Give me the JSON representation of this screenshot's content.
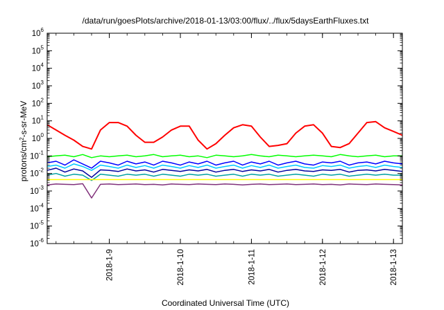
{
  "chart_data": {
    "type": "line",
    "title": "/data/run/goesPlots/archive/2018-01-13/03:00/flux/../flux/5daysEarthFluxes.txt",
    "xlabel": "Coordinated Universal Time (UTC)",
    "ylabel": "protons/cm2-s-sr-MeV",
    "yscale": "log",
    "ylim": [
      1e-06,
      1000000.0
    ],
    "xlim": [
      "2018-01-08 03:00",
      "2018-01-13 03:00"
    ],
    "grid": false,
    "y_ticks": [
      {
        "base": "10",
        "exp": "-6",
        "value": 1e-06
      },
      {
        "base": "10",
        "exp": "-5",
        "value": 1e-05
      },
      {
        "base": "10",
        "exp": "-4",
        "value": 0.0001
      },
      {
        "base": "10",
        "exp": "-3",
        "value": 0.001
      },
      {
        "base": "10",
        "exp": "-2",
        "value": 0.01
      },
      {
        "base": "10",
        "exp": "-1",
        "value": 0.1
      },
      {
        "base": "10",
        "exp": "0",
        "value": 1
      },
      {
        "base": "10",
        "exp": "1",
        "value": 10
      },
      {
        "base": "10",
        "exp": "2",
        "value": 100
      },
      {
        "base": "10",
        "exp": "3",
        "value": 1000
      },
      {
        "base": "10",
        "exp": "4",
        "value": 10000
      },
      {
        "base": "10",
        "exp": "5",
        "value": 100000
      },
      {
        "base": "10",
        "exp": "6",
        "value": 1000000
      }
    ],
    "x_ticks": [
      {
        "label": "2018-1-9",
        "value": "2018-01-09 00:00"
      },
      {
        "label": "2018-1-10",
        "value": "2018-01-10 00:00"
      },
      {
        "label": "2018-1-11",
        "value": "2018-01-11 00:00"
      },
      {
        "label": "2018-1-12",
        "value": "2018-01-12 00:00"
      },
      {
        "label": "2018-1-13",
        "value": "2018-01-13 00:00"
      }
    ],
    "x": [
      "2018-01-08 03:00",
      "2018-01-08 06:00",
      "2018-01-08 09:00",
      "2018-01-08 12:00",
      "2018-01-08 15:00",
      "2018-01-08 18:00",
      "2018-01-08 21:00",
      "2018-01-09 00:00",
      "2018-01-09 03:00",
      "2018-01-09 06:00",
      "2018-01-09 09:00",
      "2018-01-09 12:00",
      "2018-01-09 15:00",
      "2018-01-09 18:00",
      "2018-01-09 21:00",
      "2018-01-10 00:00",
      "2018-01-10 03:00",
      "2018-01-10 06:00",
      "2018-01-10 09:00",
      "2018-01-10 12:00",
      "2018-01-10 15:00",
      "2018-01-10 18:00",
      "2018-01-10 21:00",
      "2018-01-11 00:00",
      "2018-01-11 03:00",
      "2018-01-11 06:00",
      "2018-01-11 09:00",
      "2018-01-11 12:00",
      "2018-01-11 15:00",
      "2018-01-11 18:00",
      "2018-01-11 21:00",
      "2018-01-12 00:00",
      "2018-01-12 03:00",
      "2018-01-12 06:00",
      "2018-01-12 09:00",
      "2018-01-12 12:00",
      "2018-01-12 15:00",
      "2018-01-12 18:00",
      "2018-01-12 21:00",
      "2018-01-13 00:00",
      "2018-01-13 03:00"
    ],
    "series": [
      {
        "color": "#ff0000",
        "width": 2,
        "values": [
          6,
          3,
          1.5,
          0.8,
          0.35,
          0.25,
          3,
          8,
          8,
          5,
          1.5,
          0.6,
          0.6,
          1.2,
          3,
          5,
          5,
          0.8,
          0.25,
          0.5,
          1.5,
          4,
          6,
          5,
          1.2,
          0.35,
          0.4,
          0.5,
          2,
          5,
          6,
          2,
          0.35,
          0.3,
          0.5,
          2,
          8,
          9,
          4,
          2.5,
          1.5
        ]
      },
      {
        "color": "#00ff00",
        "width": 1.5,
        "values": [
          0.09,
          0.1,
          0.11,
          0.09,
          0.12,
          0.08,
          0.1,
          0.09,
          0.1,
          0.11,
          0.09,
          0.1,
          0.12,
          0.09,
          0.1,
          0.11,
          0.09,
          0.1,
          0.08,
          0.11,
          0.1,
          0.09,
          0.1,
          0.12,
          0.1,
          0.09,
          0.11,
          0.1,
          0.09,
          0.1,
          0.11,
          0.1,
          0.09,
          0.12,
          0.1,
          0.09,
          0.1,
          0.11,
          0.09,
          0.1,
          0.1
        ]
      },
      {
        "color": "#0000ff",
        "width": 1.5,
        "values": [
          0.04,
          0.05,
          0.03,
          0.06,
          0.035,
          0.02,
          0.05,
          0.04,
          0.03,
          0.05,
          0.035,
          0.045,
          0.03,
          0.05,
          0.04,
          0.03,
          0.045,
          0.035,
          0.05,
          0.03,
          0.04,
          0.05,
          0.03,
          0.045,
          0.035,
          0.05,
          0.03,
          0.04,
          0.05,
          0.035,
          0.03,
          0.045,
          0.04,
          0.05,
          0.03,
          0.04,
          0.045,
          0.035,
          0.05,
          0.04,
          0.035
        ]
      },
      {
        "color": "#00c8ff",
        "width": 1.5,
        "values": [
          0.025,
          0.03,
          0.02,
          0.035,
          0.025,
          0.015,
          0.03,
          0.025,
          0.02,
          0.03,
          0.022,
          0.028,
          0.02,
          0.03,
          0.025,
          0.02,
          0.028,
          0.022,
          0.03,
          0.02,
          0.025,
          0.03,
          0.02,
          0.028,
          0.022,
          0.03,
          0.02,
          0.025,
          0.03,
          0.022,
          0.02,
          0.028,
          0.025,
          0.03,
          0.02,
          0.025,
          0.028,
          0.022,
          0.03,
          0.025,
          0.022
        ]
      },
      {
        "color": "#0000a0",
        "width": 1.5,
        "values": [
          0.015,
          0.02,
          0.012,
          0.018,
          0.014,
          0.006,
          0.016,
          0.015,
          0.013,
          0.018,
          0.014,
          0.016,
          0.012,
          0.017,
          0.015,
          0.013,
          0.016,
          0.014,
          0.017,
          0.012,
          0.015,
          0.017,
          0.013,
          0.016,
          0.014,
          0.017,
          0.012,
          0.015,
          0.017,
          0.014,
          0.013,
          0.016,
          0.015,
          0.017,
          0.012,
          0.015,
          0.016,
          0.014,
          0.017,
          0.015,
          0.013
        ]
      },
      {
        "color": "#00a0a0",
        "width": 1.5,
        "values": [
          0.008,
          0.01,
          0.007,
          0.009,
          0.008,
          0.004,
          0.009,
          0.008,
          0.007,
          0.009,
          0.008,
          0.009,
          0.007,
          0.009,
          0.008,
          0.007,
          0.009,
          0.008,
          0.009,
          0.007,
          0.008,
          0.009,
          0.007,
          0.009,
          0.008,
          0.009,
          0.007,
          0.008,
          0.009,
          0.008,
          0.007,
          0.009,
          0.008,
          0.009,
          0.007,
          0.008,
          0.009,
          0.008,
          0.009,
          0.008,
          0.008
        ]
      },
      {
        "color": "#ffff00",
        "width": 1.5,
        "values": [
          0.0045,
          0.0045,
          0.0045,
          0.0045,
          0.0045,
          0.0045,
          0.0045,
          0.0045,
          0.0045,
          0.0045,
          0.0045,
          0.0045,
          0.0045,
          0.0045,
          0.0045,
          0.0045,
          0.0045,
          0.0045,
          0.0045,
          0.0045,
          0.0045,
          0.0045,
          0.0045,
          0.0045,
          0.0045,
          0.0045,
          0.0045,
          0.0045,
          0.0045,
          0.0045,
          0.0045,
          0.0045,
          0.0045,
          0.0045,
          0.0045,
          0.0045,
          0.0045,
          0.0045,
          0.0045,
          0.0045,
          0.0045
        ]
      },
      {
        "color": "#80307a",
        "width": 1.5,
        "values": [
          0.0022,
          0.0025,
          0.0024,
          0.0023,
          0.0026,
          0.0004,
          0.0024,
          0.0025,
          0.0023,
          0.0024,
          0.0025,
          0.0023,
          0.0024,
          0.0022,
          0.0025,
          0.0024,
          0.0023,
          0.0025,
          0.0024,
          0.0023,
          0.0025,
          0.0024,
          0.0022,
          0.0024,
          0.0025,
          0.0023,
          0.0024,
          0.0025,
          0.0023,
          0.0024,
          0.0025,
          0.0023,
          0.0024,
          0.0022,
          0.0025,
          0.0024,
          0.0023,
          0.0025,
          0.0024,
          0.0023,
          0.0022
        ]
      }
    ]
  }
}
